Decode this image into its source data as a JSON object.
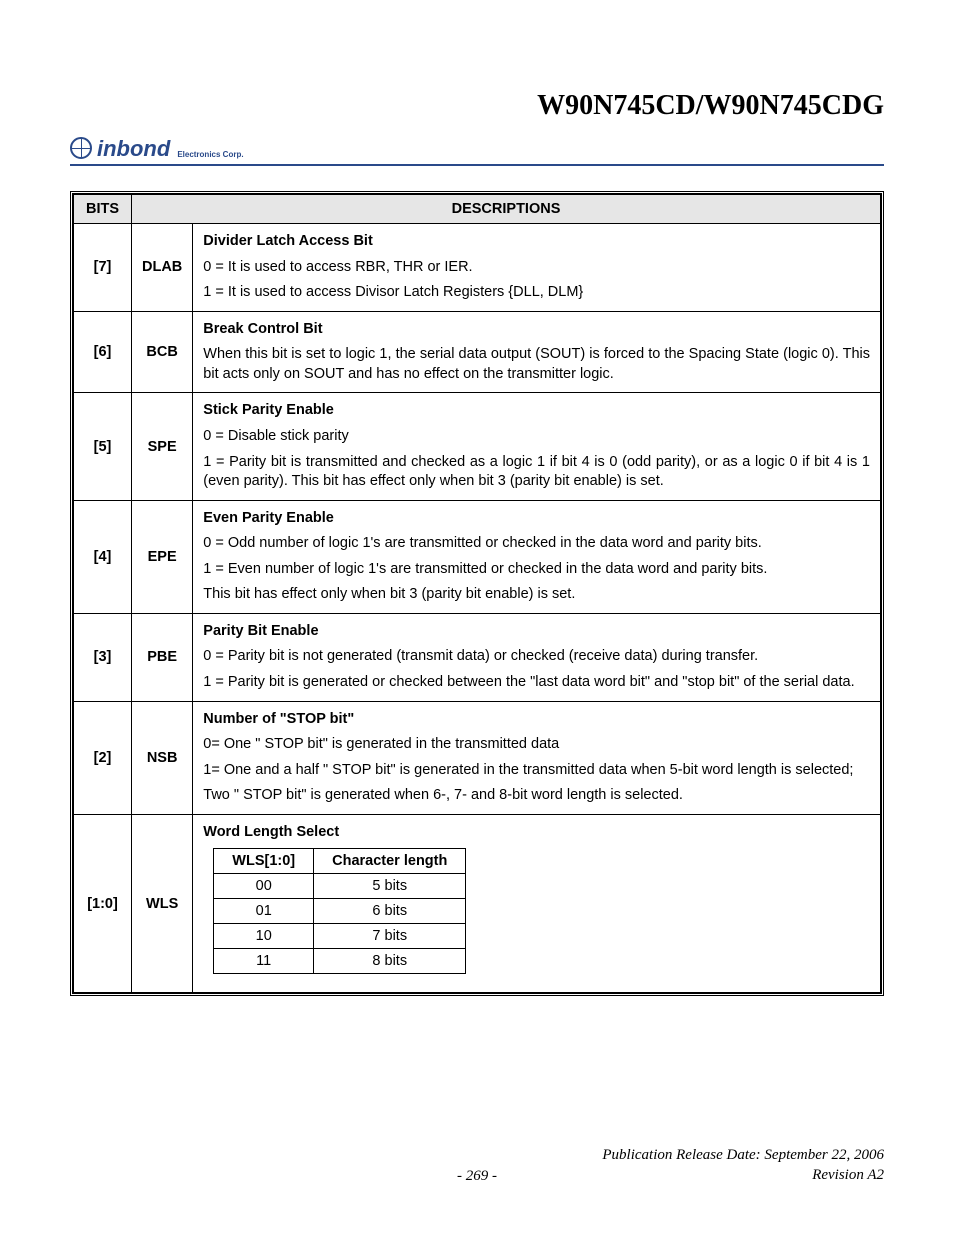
{
  "header": {
    "title": "W90N745CD/W90N745CDG",
    "logo_text": "inbond",
    "logo_sub": "Electronics Corp."
  },
  "table": {
    "headers": {
      "bits": "BITS",
      "descriptions": "DESCRIPTIONS"
    },
    "rows": [
      {
        "bits": "[7]",
        "name": "DLAB",
        "title": "Divider Latch Access Bit",
        "lines": [
          "0 = It is used to access RBR, THR or IER.",
          "1 = It is used to access Divisor Latch Registers {DLL, DLM}"
        ]
      },
      {
        "bits": "[6]",
        "name": "BCB",
        "title": "Break Control Bit",
        "lines": [
          "When this bit is set to logic 1, the serial data output (SOUT) is forced to the Spacing State (logic 0). This bit acts only on SOUT and has no effect on the transmitter logic."
        ]
      },
      {
        "bits": "[5]",
        "name": "SPE",
        "title": "Stick Parity Enable",
        "lines": [
          "0 = Disable stick parity",
          "1 = Parity bit is transmitted and checked as a logic 1 if bit 4 is 0 (odd parity), or as a logic 0 if bit 4 is 1 (even parity). This bit has effect only when bit 3 (parity bit enable) is set."
        ]
      },
      {
        "bits": "[4]",
        "name": "EPE",
        "title": "Even Parity Enable",
        "lines": [
          "0 = Odd number of logic 1's are transmitted or checked in the data word and parity bits.",
          "1 = Even number of logic 1's are transmitted or checked in the data word and parity bits.",
          "This bit has effect only when bit 3 (parity bit enable) is set."
        ]
      },
      {
        "bits": "[3]",
        "name": "PBE",
        "title": "Parity Bit Enable",
        "lines": [
          "0 = Parity bit is not generated (transmit data) or checked (receive data) during transfer.",
          "1 = Parity bit is generated or checked between the \"last data word bit\" and \"stop bit\" of the serial data."
        ]
      },
      {
        "bits": "[2]",
        "name": "NSB",
        "title": "Number of \"STOP bit\"",
        "lines": [
          "0= One \" STOP bit\" is generated in the transmitted data",
          "1= One and a half \" STOP bit\" is generated in the transmitted data when 5-bit word length is selected;",
          "Two \" STOP bit\" is generated when 6-, 7- and 8-bit word length is selected."
        ]
      },
      {
        "bits": "[1:0]",
        "name": "WLS",
        "title": "Word Length Select",
        "inner_table": {
          "headers": [
            "WLS[1:0]",
            "Character length"
          ],
          "rows": [
            [
              "00",
              "5 bits"
            ],
            [
              "01",
              "6 bits"
            ],
            [
              "10",
              "7 bits"
            ],
            [
              "11",
              "8 bits"
            ]
          ]
        }
      }
    ]
  },
  "footer": {
    "release": "Publication Release Date: September 22, 2006",
    "revision": "Revision A2",
    "page": "- 269 -"
  }
}
